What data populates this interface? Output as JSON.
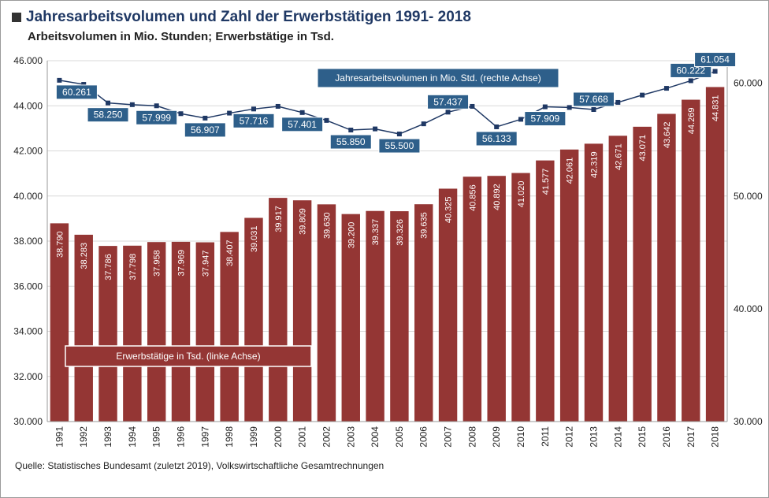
{
  "title": "Jahresarbeitsvolumen und Zahl der Erwerbstätigen 1991- 2018",
  "subtitle": "Arbeitsvolumen in Mio. Stunden; Erwerbstätige in Tsd.",
  "source": "Quelle: Statistisches Bundesamt (zuletzt 2019), Volkswirtschaftliche Gesamtrechnungen",
  "colors": {
    "bar": "#943634",
    "line": "#1f3864",
    "label_box": "#2e5f8a",
    "grid": "#d9d9d9"
  },
  "chart_data": {
    "type": "bar",
    "categories": [
      "1991",
      "1992",
      "1993",
      "1994",
      "1995",
      "1996",
      "1997",
      "1998",
      "1999",
      "2000",
      "2001",
      "2002",
      "2003",
      "2004",
      "2005",
      "2006",
      "2007",
      "2008",
      "2009",
      "2010",
      "2011",
      "2012",
      "2013",
      "2014",
      "2015",
      "2016",
      "2017",
      "2018"
    ],
    "series": [
      {
        "name": "Erwerbstätige in Tsd. (linke Achse)",
        "type": "bar",
        "axis": "left",
        "values": [
          38790,
          38283,
          37786,
          37798,
          37958,
          37969,
          37947,
          38407,
          39031,
          39917,
          39809,
          39630,
          39200,
          39337,
          39326,
          39635,
          40325,
          40856,
          40892,
          41020,
          41577,
          42061,
          42319,
          42671,
          43071,
          43642,
          44269,
          44831
        ],
        "labels": [
          "38.790",
          "38.283",
          "37.786",
          "37.798",
          "37.958",
          "37.969",
          "37.947",
          "38.407",
          "39.031",
          "39.917",
          "39.809",
          "39.630",
          "39.200",
          "39.337",
          "39.326",
          "39.635",
          "40.325",
          "40.856",
          "40.892",
          "41.020",
          "41.577",
          "42.061",
          "42.319",
          "42.671",
          "43.071",
          "43.642",
          "44.269",
          "44.831"
        ]
      },
      {
        "name": "Jahresarbeitsvolumen in Mio. Std. (rechte Achse)",
        "type": "line",
        "axis": "right",
        "values": [
          60261,
          59900,
          58250,
          58100,
          57999,
          57300,
          56907,
          57350,
          57716,
          57950,
          57401,
          56700,
          55850,
          55950,
          55500,
          56400,
          57437,
          57950,
          56133,
          56800,
          57909,
          57850,
          57668,
          58300,
          58950,
          59550,
          60222,
          61054
        ],
        "labels": [
          "60.261",
          "",
          "58.250",
          "",
          "57.999",
          "",
          "56.907",
          "",
          "57.716",
          "",
          "57.401",
          "",
          "55.850",
          "",
          "55.500",
          "",
          "57.437",
          "",
          "56.133",
          "",
          "57.909",
          "",
          "57.668",
          "",
          "",
          "",
          "60.222",
          "61.054"
        ]
      }
    ],
    "y_left": {
      "ylim": [
        30000,
        46000
      ],
      "ticks": [
        "30.000",
        "32.000",
        "34.000",
        "36.000",
        "38.000",
        "40.000",
        "42.000",
        "44.000",
        "46.000"
      ],
      "tick_values": [
        30000,
        32000,
        34000,
        36000,
        38000,
        40000,
        42000,
        44000,
        46000
      ]
    },
    "y_right": {
      "ylim": [
        30000,
        62000
      ],
      "ticks": [
        "30.000",
        "40.000",
        "50.000",
        "60.000"
      ],
      "tick_values": [
        30000,
        40000,
        50000,
        60000
      ]
    },
    "grid": true
  }
}
